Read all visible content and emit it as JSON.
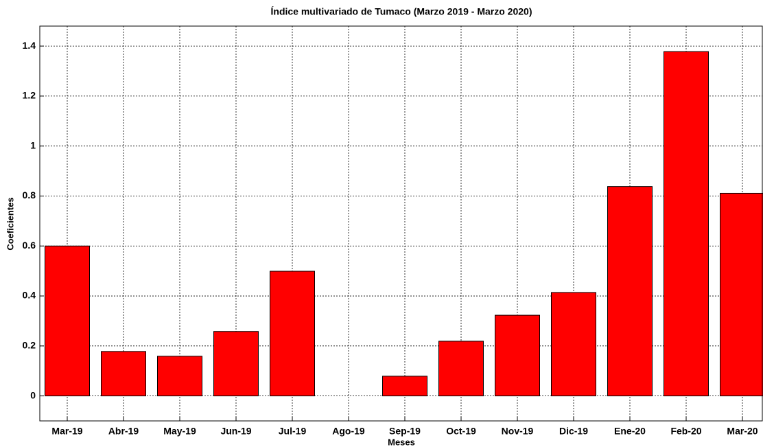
{
  "chart_data": {
    "type": "bar",
    "title": "Índice multivariado de Tumaco (Marzo 2019 - Marzo 2020)",
    "xlabel": "Meses",
    "ylabel": "Coeficientes",
    "categories": [
      "Mar-19",
      "Abr-19",
      "May-19",
      "Jun-19",
      "Jul-19",
      "Ago-19",
      "Sep-19",
      "Oct-19",
      "Nov-19",
      "Dic-19",
      "Ene-20",
      "Feb-20",
      "Mar-20"
    ],
    "values": [
      0.6,
      0.178,
      0.159,
      0.258,
      0.499,
      0,
      0.079,
      0.219,
      0.323,
      0.414,
      0.838,
      1.378,
      0.811
    ],
    "color": "#ff0000",
    "ylim": [
      -0.1,
      1.48
    ],
    "yticks": [
      0,
      0.2,
      0.4,
      0.6,
      0.8,
      1,
      1.2,
      1.4
    ],
    "grid": true
  }
}
